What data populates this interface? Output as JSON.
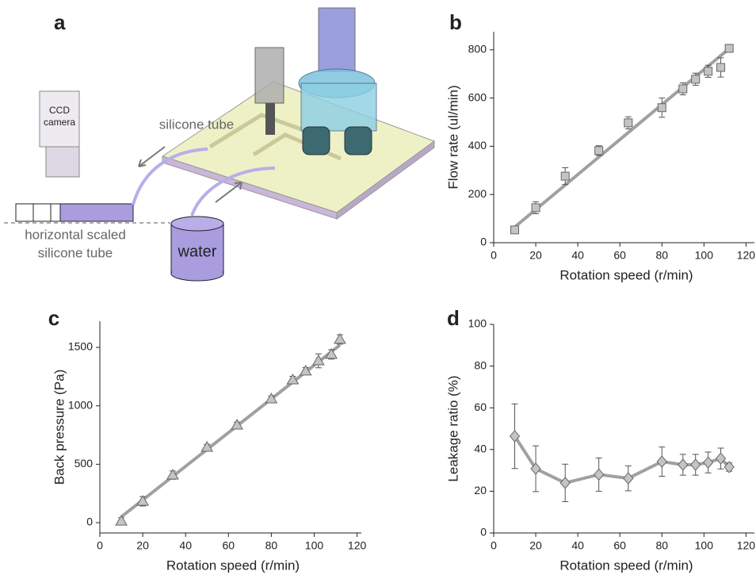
{
  "diagram": {
    "panel": "a",
    "ccd_camera": [
      "CCD",
      "camera"
    ],
    "tube_label": "silicone tube",
    "scaled_tube": [
      "horizontal scaled",
      "silicone tube"
    ],
    "reservoir": "water"
  },
  "chart_data": [
    {
      "type": "scatter",
      "panel": "b",
      "marker": "square",
      "x_label": "Rotation speed (r/min)",
      "y_label": "Flow rate (ul/min)",
      "x": [
        10,
        20,
        34,
        50,
        64,
        80,
        90,
        96,
        102,
        108,
        112
      ],
      "values": [
        53,
        145,
        276,
        382,
        497,
        560,
        638,
        678,
        711,
        727,
        806
      ],
      "errors": [
        12,
        25,
        35,
        20,
        25,
        40,
        25,
        25,
        25,
        40,
        15
      ],
      "fit_x": [
        10,
        112
      ],
      "fit_values": [
        65,
        805
      ],
      "color": "#c4c4c4",
      "line_color": "#a0a0a0",
      "xlim": [
        0,
        124
      ],
      "xticks": [
        0,
        20,
        40,
        60,
        80,
        100,
        120
      ],
      "ylim": [
        0,
        875
      ],
      "yticks": [
        0,
        200,
        400,
        600,
        800
      ]
    },
    {
      "type": "scatter",
      "panel": "c",
      "marker": "triangle",
      "x_label": "Rotation speed (r/min)",
      "y_label": "Back pressure (Pa)",
      "x": [
        10,
        20,
        34,
        50,
        64,
        80,
        90,
        96,
        102,
        108,
        112
      ],
      "values": [
        13,
        183,
        407,
        645,
        835,
        1059,
        1222,
        1297,
        1385,
        1440,
        1568
      ],
      "errors": [
        30,
        40,
        35,
        25,
        25,
        25,
        30,
        30,
        60,
        40,
        40
      ],
      "fit_x": [
        10,
        112
      ],
      "fit_values": [
        50,
        1520
      ],
      "color": "#c4c4c4",
      "line_color": "#a0a0a0",
      "xlim": [
        0,
        122
      ],
      "xticks": [
        0,
        20,
        40,
        60,
        80,
        100,
        120
      ],
      "ylim": [
        -88,
        1724
      ],
      "yticks": [
        0,
        500,
        1000,
        1500
      ]
    },
    {
      "type": "line",
      "panel": "d",
      "marker": "diamond",
      "x_label": "Rotation speed (r/min)",
      "y_label": "Leakage ratio (%)",
      "x": [
        10,
        20,
        34,
        50,
        64,
        80,
        90,
        96,
        102,
        108,
        112
      ],
      "values": [
        46.4,
        30.8,
        24,
        28,
        26.2,
        34.2,
        32.7,
        32.7,
        33.8,
        35.7,
        31.6
      ],
      "errors": [
        15.5,
        11,
        9,
        8,
        6,
        7,
        5,
        5,
        5,
        5,
        2
      ],
      "color": "#c4c4c4",
      "line_color": "#a0a0a0",
      "xlim": [
        0,
        124
      ],
      "xticks": [
        0,
        20,
        40,
        60,
        80,
        100,
        120
      ],
      "ylim": [
        0,
        100
      ],
      "yticks": [
        0,
        20,
        40,
        60,
        80,
        100
      ]
    }
  ]
}
